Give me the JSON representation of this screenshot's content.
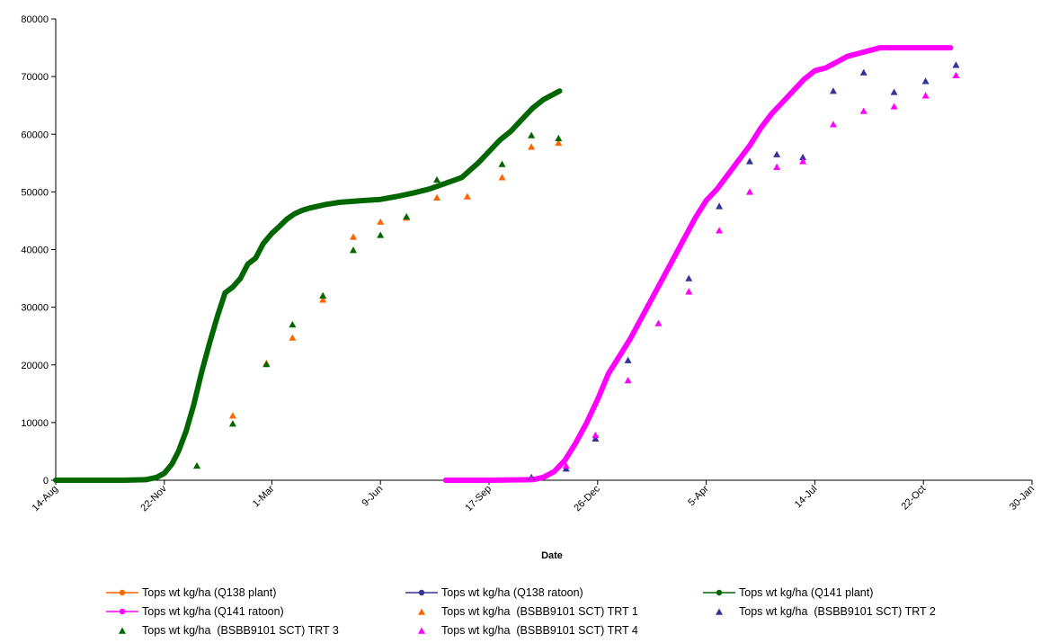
{
  "chart_data": {
    "type": "scatter",
    "title": "",
    "xlabel": "Date",
    "ylabel": "",
    "ylim": [
      0,
      80000
    ],
    "yticks": [
      0,
      10000,
      20000,
      30000,
      40000,
      50000,
      60000,
      70000,
      80000
    ],
    "xlim": [
      "2005-08-14",
      "2008-01-30"
    ],
    "xtick_labels": [
      "14-Aug",
      "22-Nov",
      "1-Mar",
      "9-Jun",
      "17-Sep",
      "26-Dec",
      "5-Apr",
      "14-Jul",
      "22-Oct",
      "30-Jan"
    ],
    "xticks": [
      "2005-08-14",
      "2005-11-22",
      "2006-03-01",
      "2006-06-09",
      "2006-09-17",
      "2006-12-26",
      "2007-04-05",
      "2007-07-14",
      "2007-10-22",
      "2008-01-30"
    ],
    "grid": false,
    "legend_position": "bottom",
    "series": [
      {
        "name": "Tops wt kg/ha (Q138 plant)",
        "kind": "line",
        "color": "#FF6600",
        "x": [],
        "y": []
      },
      {
        "name": "Tops wt kg/ha (Q138 ratoon)",
        "kind": "line",
        "color": "#333399",
        "x": [],
        "y": []
      },
      {
        "name": "Tops wt kg/ha (Q141 plant)",
        "kind": "line",
        "color": "#006600",
        "x": [
          "2005-08-14",
          "2005-10-15",
          "2005-11-05",
          "2005-11-15",
          "2005-11-22",
          "2005-11-29",
          "2005-12-05",
          "2005-12-12",
          "2005-12-19",
          "2005-12-26",
          "2006-01-03",
          "2006-01-10",
          "2006-01-17",
          "2006-01-24",
          "2006-01-31",
          "2006-02-07",
          "2006-02-14",
          "2006-02-21",
          "2006-03-01",
          "2006-03-08",
          "2006-03-15",
          "2006-03-22",
          "2006-03-29",
          "2006-04-05",
          "2006-04-12",
          "2006-04-19",
          "2006-04-26",
          "2006-05-03",
          "2006-05-10",
          "2006-05-17",
          "2006-05-24",
          "2006-06-09",
          "2006-06-24",
          "2006-07-09",
          "2006-07-24",
          "2006-08-08",
          "2006-08-23",
          "2006-09-07",
          "2006-09-17",
          "2006-09-27",
          "2006-10-07",
          "2006-10-17",
          "2006-10-27",
          "2006-11-06",
          "2006-11-16",
          "2006-11-21"
        ],
        "y": [
          0,
          0,
          100,
          500,
          1200,
          2800,
          5000,
          8500,
          13000,
          18500,
          24000,
          28500,
          32500,
          33500,
          35000,
          37500,
          38500,
          41000,
          42800,
          44000,
          45300,
          46200,
          46800,
          47200,
          47500,
          47800,
          48000,
          48200,
          48300,
          48400,
          48500,
          48700,
          49200,
          49800,
          50500,
          51500,
          52500,
          55000,
          57000,
          59000,
          60500,
          62500,
          64500,
          66000,
          67000,
          67500
        ]
      },
      {
        "name": "Tops wt kg/ha (Q141 ratoon)",
        "kind": "line",
        "color": "#FF00FF",
        "x": [
          "2006-08-08",
          "2006-09-17",
          "2006-10-27",
          "2006-11-06",
          "2006-11-16",
          "2006-11-26",
          "2006-12-06",
          "2006-12-16",
          "2006-12-26",
          "2007-01-05",
          "2007-01-15",
          "2007-01-25",
          "2007-02-04",
          "2007-02-14",
          "2007-02-24",
          "2007-03-06",
          "2007-03-16",
          "2007-03-26",
          "2007-04-05",
          "2007-04-15",
          "2007-04-25",
          "2007-05-05",
          "2007-05-15",
          "2007-05-25",
          "2007-06-04",
          "2007-06-14",
          "2007-06-24",
          "2007-07-04",
          "2007-07-14",
          "2007-07-24",
          "2007-08-03",
          "2007-08-13",
          "2007-08-23",
          "2007-09-02",
          "2007-09-12",
          "2007-09-22",
          "2007-10-02",
          "2007-10-22",
          "2007-11-16"
        ],
        "y": [
          0,
          0,
          100,
          500,
          1500,
          3500,
          6500,
          10000,
          14000,
          18500,
          21500,
          24500,
          28000,
          31500,
          35000,
          38500,
          42000,
          45500,
          48500,
          50500,
          53000,
          55500,
          58000,
          61000,
          63500,
          65500,
          67500,
          69500,
          71000,
          71500,
          72500,
          73500,
          74000,
          74500,
          75000,
          75000,
          75000,
          75000,
          75000
        ]
      },
      {
        "name": "Tops wt kg/ha  (BSBB9101 SCT) TRT 1",
        "kind": "marker",
        "color": "#FF6600",
        "x": [
          "2005-12-22",
          "2006-01-24",
          "2006-02-24",
          "2006-03-20",
          "2006-04-17",
          "2006-05-15",
          "2006-06-09",
          "2006-07-03",
          "2006-07-31",
          "2006-08-28",
          "2006-09-29",
          "2006-10-26",
          "2006-11-20"
        ],
        "y": [
          2500,
          11200,
          20300,
          24700,
          31300,
          42200,
          44800,
          45500,
          49000,
          49200,
          52500,
          57800,
          58500
        ]
      },
      {
        "name": "Tops wt kg/ha  (BSBB9101 SCT) TRT 2",
        "kind": "marker",
        "color": "#333399",
        "x": [
          "2006-10-26",
          "2006-11-27",
          "2006-12-24",
          "2007-01-23",
          "2007-03-20",
          "2007-04-17",
          "2007-05-15",
          "2007-06-09",
          "2007-07-03",
          "2007-07-31",
          "2007-08-28",
          "2007-09-25",
          "2007-10-24",
          "2007-11-21"
        ],
        "y": [
          500,
          2000,
          7200,
          20800,
          35000,
          47500,
          55300,
          56500,
          56000,
          67500,
          70700,
          67300,
          69200,
          72000
        ]
      },
      {
        "name": "Tops wt kg/ha  (BSBB9101 SCT) TRT 3",
        "kind": "marker",
        "color": "#006600",
        "x": [
          "2005-12-22",
          "2006-01-24",
          "2006-02-24",
          "2006-03-20",
          "2006-04-17",
          "2006-05-15",
          "2006-06-09",
          "2006-07-03",
          "2006-07-31",
          "2006-09-29",
          "2006-10-26",
          "2006-11-20"
        ],
        "y": [
          2500,
          9800,
          20100,
          27000,
          32000,
          39900,
          42500,
          45700,
          52100,
          54800,
          59800,
          59300
        ]
      },
      {
        "name": "Tops wt kg/ha  (BSBB9101 SCT) TRT 4",
        "kind": "marker",
        "color": "#FF00FF",
        "x": [
          "2006-10-26",
          "2006-11-27",
          "2006-12-24",
          "2007-01-23",
          "2007-02-20",
          "2007-03-20",
          "2007-04-17",
          "2007-05-15",
          "2007-06-09",
          "2007-07-03",
          "2007-07-31",
          "2007-08-28",
          "2007-09-25",
          "2007-10-24",
          "2007-11-21"
        ],
        "y": [
          200,
          2500,
          7800,
          17300,
          27200,
          32700,
          43300,
          50000,
          54300,
          55300,
          61700,
          64000,
          64800,
          66700,
          70200
        ]
      }
    ]
  }
}
